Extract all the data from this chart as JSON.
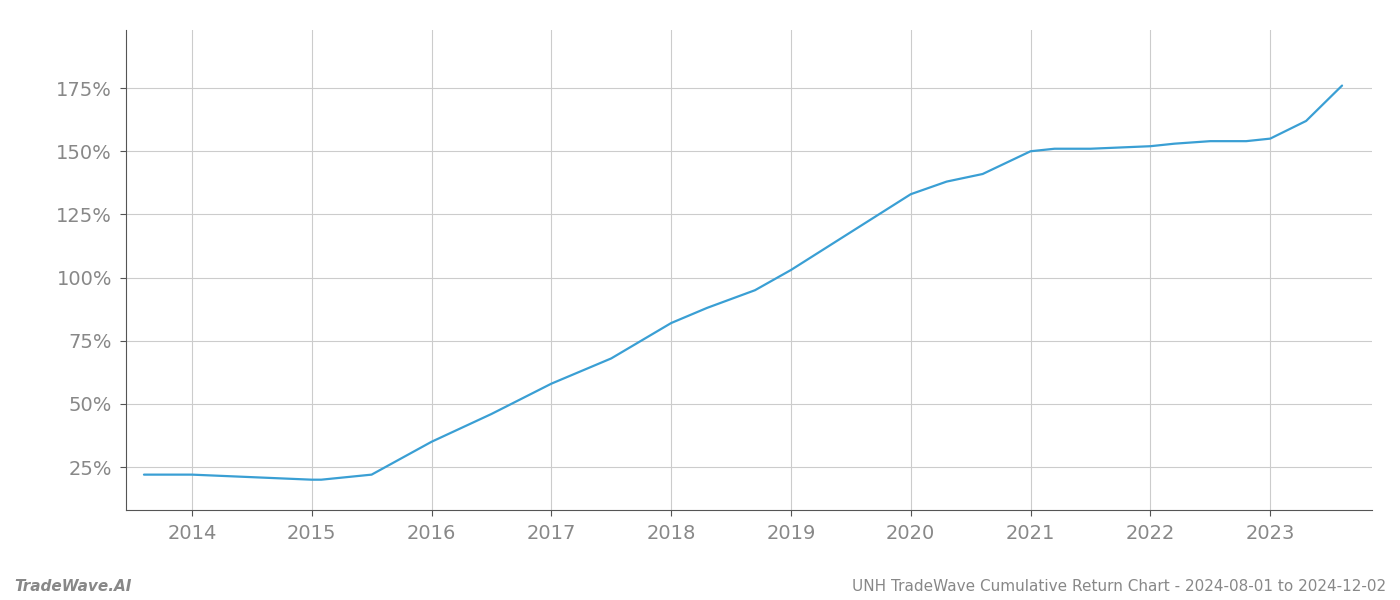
{
  "title": "UNH TradeWave Cumulative Return Chart - 2024-08-01 to 2024-12-02",
  "watermark": "TradeWave.AI",
  "line_color": "#3a9fd4",
  "background_color": "#ffffff",
  "grid_color": "#cccccc",
  "x_values": [
    2013.6,
    2014.0,
    2014.5,
    2015.0,
    2015.08,
    2015.5,
    2016.0,
    2016.5,
    2017.0,
    2017.5,
    2018.0,
    2018.3,
    2018.7,
    2019.0,
    2019.5,
    2020.0,
    2020.3,
    2020.6,
    2021.0,
    2021.2,
    2021.5,
    2022.0,
    2022.2,
    2022.5,
    2022.8,
    2023.0,
    2023.3,
    2023.6
  ],
  "y_values": [
    22,
    22,
    21,
    20,
    20,
    22,
    35,
    46,
    58,
    68,
    82,
    88,
    95,
    103,
    118,
    133,
    138,
    141,
    150,
    151,
    151,
    152,
    153,
    154,
    154,
    155,
    162,
    176
  ],
  "x_ticks": [
    2014,
    2015,
    2016,
    2017,
    2018,
    2019,
    2020,
    2021,
    2022,
    2023
  ],
  "y_ticks": [
    25,
    50,
    75,
    100,
    125,
    150,
    175
  ],
  "ylim": [
    8,
    198
  ],
  "xlim": [
    2013.45,
    2023.85
  ],
  "tick_label_color": "#888888",
  "spine_color": "#555555",
  "tick_fontsize": 14,
  "footer_fontsize": 11,
  "line_width": 1.6
}
